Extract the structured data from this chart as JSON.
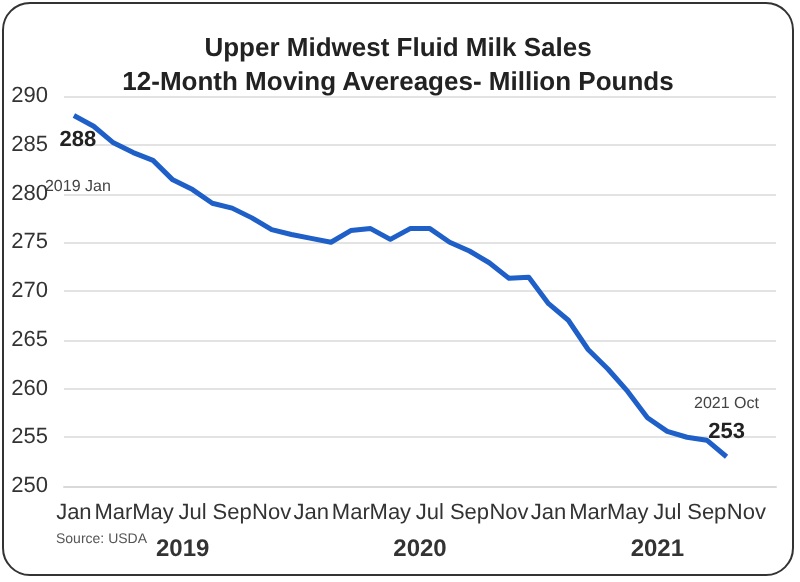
{
  "chart_data": {
    "type": "line",
    "title": "Upper Midwest Fluid Milk Sales\n12-Month Moving Avereages- Million Pounds",
    "categories": [
      "Jan",
      null,
      "Mar",
      null,
      "May",
      null,
      "Jul",
      null,
      "Sep",
      null,
      "Nov",
      null,
      "Jan",
      null,
      "Mar",
      null,
      "May",
      null,
      "Jul",
      null,
      "Sep",
      null,
      "Nov",
      null,
      "Jan",
      null,
      "Mar",
      null,
      "May",
      null,
      "Jul",
      null,
      "Sep",
      null,
      "Nov",
      null
    ],
    "series": [
      {
        "color": "#1f5fc8",
        "values": [
          288,
          286.9,
          285.2,
          284.2,
          283.4,
          281.4,
          280.4,
          279.0,
          278.5,
          277.5,
          276.3,
          275.8,
          275.4,
          275.0,
          276.2,
          276.4,
          275.3,
          276.4,
          276.4,
          275.0,
          274.1,
          272.9,
          271.3,
          271.4,
          268.7,
          267.0,
          264.0,
          262.0,
          259.7,
          257.0,
          255.6,
          255.0,
          254.7,
          253,
          null,
          null
        ],
        "value_labels": [
          "288",
          null,
          null,
          null,
          null,
          null,
          null,
          null,
          null,
          null,
          null,
          null,
          null,
          null,
          null,
          null,
          null,
          null,
          null,
          null,
          null,
          null,
          null,
          null,
          null,
          null,
          null,
          null,
          null,
          null,
          null,
          null,
          null,
          "253",
          null,
          null
        ]
      }
    ],
    "annotations": [
      "2019 Jan",
      "2021 Oct",
      "2019",
      "2020",
      "2021",
      "Source: USDA"
    ],
    "ylim": [
      250,
      290
    ],
    "yticks": [
      250,
      255,
      260,
      265,
      270,
      275,
      280,
      285,
      290
    ],
    "grid": "y",
    "marker": "none",
    "line_style": "solid"
  }
}
